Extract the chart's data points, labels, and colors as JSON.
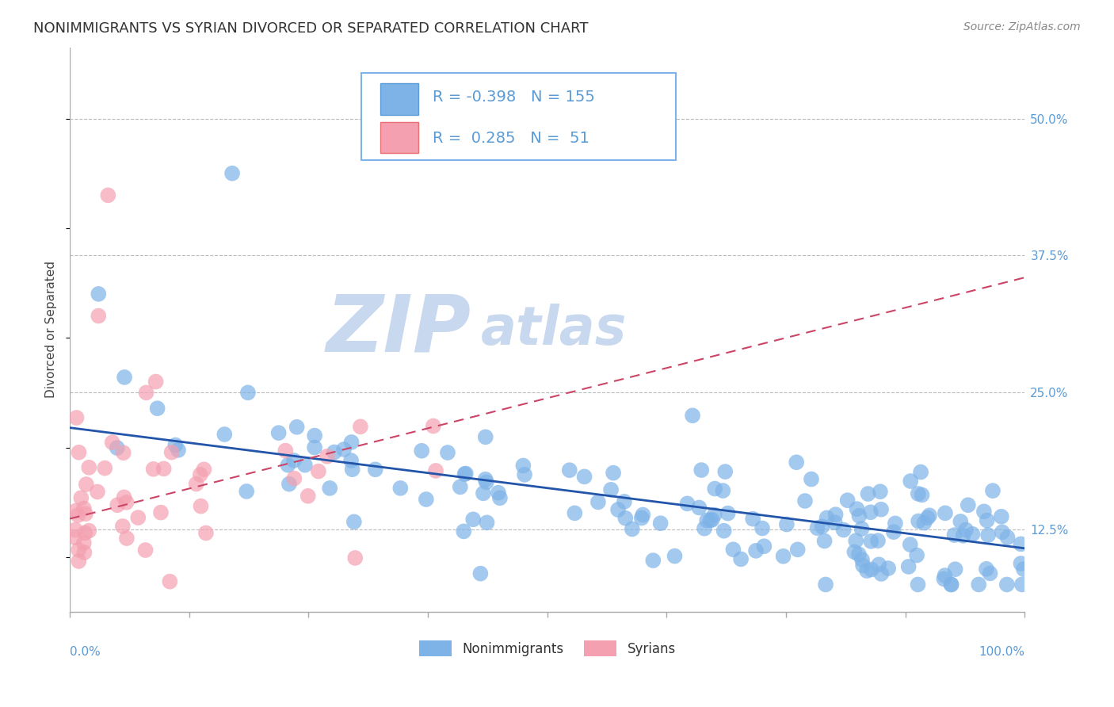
{
  "title": "NONIMMIGRANTS VS SYRIAN DIVORCED OR SEPARATED CORRELATION CHART",
  "source_text": "Source: ZipAtlas.com",
  "ylabel": "Divorced or Separated",
  "ytick_labels": [
    "12.5%",
    "25.0%",
    "37.5%",
    "50.0%"
  ],
  "ytick_values": [
    0.125,
    0.25,
    0.375,
    0.5
  ],
  "ylim": [
    0.05,
    0.565
  ],
  "xlim": [
    0.0,
    1.0
  ],
  "blue_color": "#7EB3E8",
  "pink_color": "#F4A0B0",
  "trend_blue_color": "#2255AA",
  "trend_pink_color": "#CC4466",
  "watermark_zip": "ZIP",
  "watermark_atlas": "atlas",
  "watermark_color": "#C8D8EE",
  "title_fontsize": 13,
  "label_fontsize": 11,
  "tick_fontsize": 11,
  "source_fontsize": 10,
  "legend_fontsize": 14,
  "blue_trend_x0": 0.0,
  "blue_trend_x1": 1.0,
  "blue_trend_y0": 0.218,
  "blue_trend_y1": 0.108,
  "pink_trend_x0": 0.0,
  "pink_trend_x1": 1.0,
  "pink_trend_y0": 0.135,
  "pink_trend_y1": 0.355
}
